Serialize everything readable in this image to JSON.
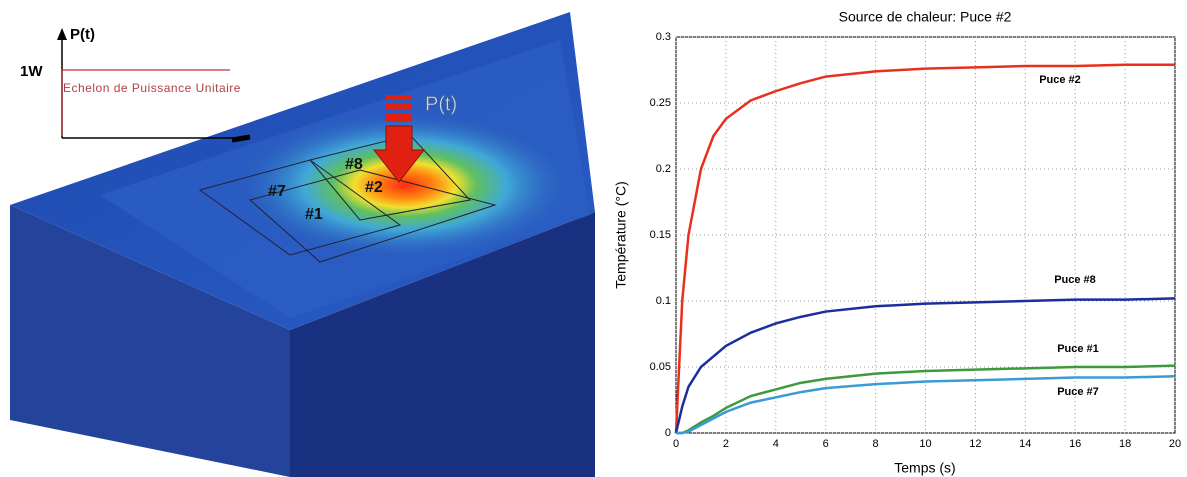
{
  "diagram": {
    "power_axis_label": "P(t)",
    "power_level": "1W",
    "step_caption": "Echelon de Puissance Unitaire",
    "arrow_label": "P(t)",
    "chips": [
      "#8",
      "#2",
      "#7",
      "#1"
    ]
  },
  "chart_data": {
    "type": "line",
    "title": "Source de chaleur: Puce #2",
    "xlabel": "Temps (s)",
    "ylabel": "Température (°C)",
    "x": [
      0,
      0.25,
      0.5,
      1,
      1.5,
      2,
      3,
      4,
      5,
      6,
      8,
      10,
      12,
      14,
      16,
      18,
      20
    ],
    "series": [
      {
        "name": "Puce #2",
        "color": "#e8301e",
        "values": [
          0,
          0.1,
          0.15,
          0.2,
          0.225,
          0.238,
          0.252,
          0.259,
          0.265,
          0.27,
          0.274,
          0.276,
          0.277,
          0.278,
          0.278,
          0.279,
          0.279
        ]
      },
      {
        "name": "Puce #8",
        "color": "#1c2e9c",
        "values": [
          0,
          0.02,
          0.035,
          0.05,
          0.058,
          0.066,
          0.076,
          0.083,
          0.088,
          0.092,
          0.096,
          0.098,
          0.099,
          0.1,
          0.101,
          0.101,
          0.102
        ]
      },
      {
        "name": "Puce #1",
        "color": "#3c9a3c",
        "values": [
          0,
          0,
          0.002,
          0.008,
          0.013,
          0.019,
          0.028,
          0.033,
          0.038,
          0.041,
          0.045,
          0.047,
          0.048,
          0.049,
          0.05,
          0.05,
          0.051
        ]
      },
      {
        "name": "Puce #7",
        "color": "#3a9ad8",
        "values": [
          0,
          0,
          0.001,
          0.006,
          0.011,
          0.016,
          0.023,
          0.027,
          0.031,
          0.034,
          0.037,
          0.039,
          0.04,
          0.041,
          0.042,
          0.042,
          0.043
        ]
      }
    ],
    "xlim": [
      0,
      20
    ],
    "xticks": [
      0,
      2,
      4,
      6,
      8,
      10,
      12,
      14,
      16,
      18,
      20
    ],
    "ylim": [
      0,
      0.3
    ],
    "yticks": [
      0,
      0.05,
      0.1,
      0.15,
      0.2,
      0.25,
      0.3
    ],
    "grid": true
  }
}
